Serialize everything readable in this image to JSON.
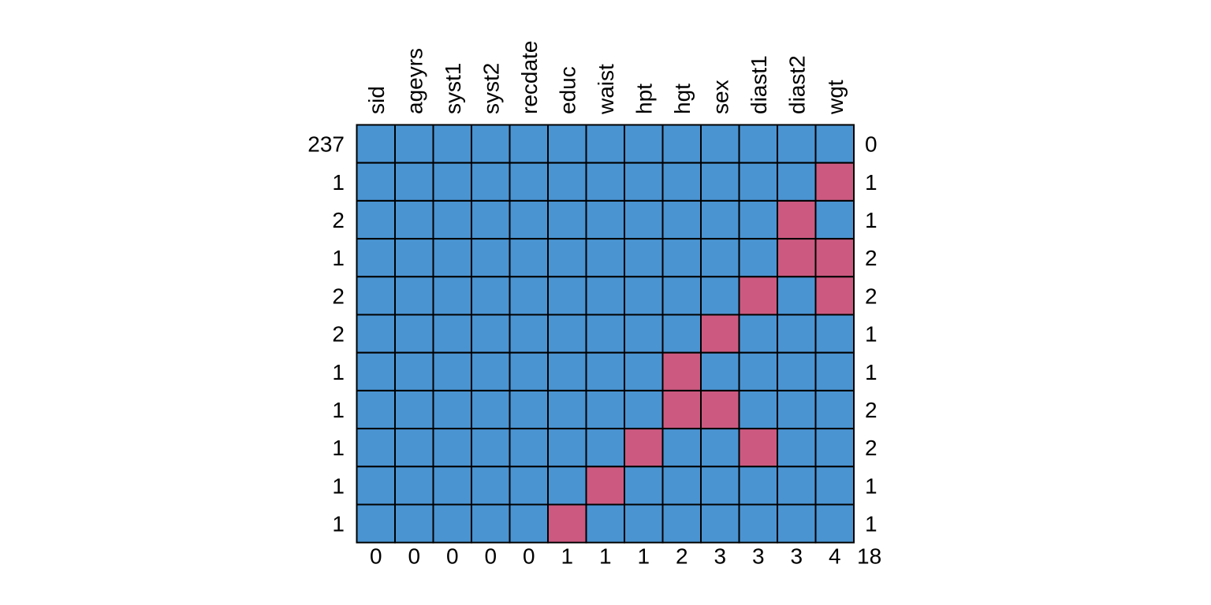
{
  "chart_data": {
    "type": "heatmap",
    "variables": [
      "sid",
      "ageyrs",
      "syst1",
      "syst2",
      "recdate",
      "educ",
      "waist",
      "hpt",
      "hgt",
      "sex",
      "diast1",
      "diast2",
      "wgt"
    ],
    "pattern_counts": [
      237,
      1,
      2,
      1,
      2,
      2,
      1,
      1,
      1,
      1,
      1
    ],
    "pattern_missing_counts": [
      0,
      1,
      1,
      2,
      2,
      1,
      1,
      2,
      2,
      1,
      1
    ],
    "variable_missing_counts": [
      0,
      0,
      0,
      0,
      0,
      1,
      1,
      1,
      2,
      3,
      3,
      3,
      4
    ],
    "total_missing": 18,
    "patterns": [
      [
        1,
        1,
        1,
        1,
        1,
        1,
        1,
        1,
        1,
        1,
        1,
        1,
        1
      ],
      [
        1,
        1,
        1,
        1,
        1,
        1,
        1,
        1,
        1,
        1,
        1,
        1,
        0
      ],
      [
        1,
        1,
        1,
        1,
        1,
        1,
        1,
        1,
        1,
        1,
        1,
        0,
        1
      ],
      [
        1,
        1,
        1,
        1,
        1,
        1,
        1,
        1,
        1,
        1,
        1,
        0,
        0
      ],
      [
        1,
        1,
        1,
        1,
        1,
        1,
        1,
        1,
        1,
        1,
        0,
        1,
        0
      ],
      [
        1,
        1,
        1,
        1,
        1,
        1,
        1,
        1,
        1,
        0,
        1,
        1,
        1
      ],
      [
        1,
        1,
        1,
        1,
        1,
        1,
        1,
        1,
        0,
        1,
        1,
        1,
        1
      ],
      [
        1,
        1,
        1,
        1,
        1,
        1,
        1,
        1,
        0,
        0,
        1,
        1,
        1
      ],
      [
        1,
        1,
        1,
        1,
        1,
        1,
        1,
        0,
        1,
        1,
        0,
        1,
        1
      ],
      [
        1,
        1,
        1,
        1,
        1,
        1,
        0,
        1,
        1,
        1,
        1,
        1,
        1
      ],
      [
        1,
        1,
        1,
        1,
        1,
        0,
        1,
        1,
        1,
        1,
        1,
        1,
        1
      ]
    ],
    "colors": {
      "observed": "#4a94d2",
      "missing": "#cc5a80"
    }
  }
}
